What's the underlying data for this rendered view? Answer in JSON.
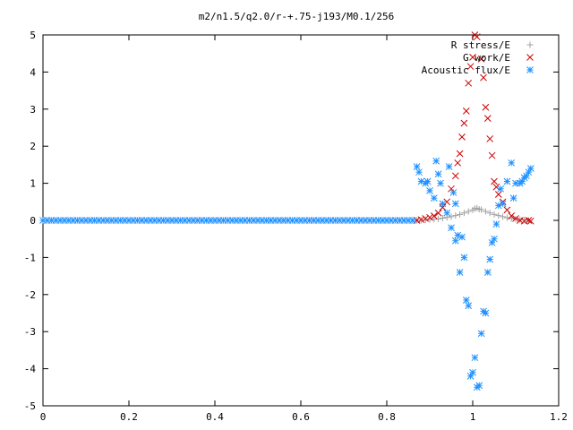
{
  "chart_data": {
    "type": "scatter",
    "title": "m2/n1.5/q2.0/r-+.75-j193/M0.1/256",
    "xlabel": "",
    "ylabel": "",
    "xlim": [
      0,
      1.2
    ],
    "ylim": [
      -5,
      5
    ],
    "xticks": [
      "0",
      "0.2",
      "0.4",
      "0.6",
      "0.8",
      "1",
      "1.2"
    ],
    "yticks": [
      "-5",
      "-4",
      "-3",
      "-2",
      "-1",
      "0",
      "1",
      "2",
      "3",
      "4",
      "5"
    ],
    "grid": false,
    "legend_position": "top-right",
    "series": [
      {
        "name": "R stress/E",
        "marker": "plus",
        "color": "#a0a0a0",
        "points": [
          [
            0.87,
            0.0
          ],
          [
            0.88,
            0.0
          ],
          [
            0.89,
            0.01
          ],
          [
            0.9,
            0.02
          ],
          [
            0.91,
            0.03
          ],
          [
            0.92,
            0.04
          ],
          [
            0.93,
            0.06
          ],
          [
            0.94,
            0.08
          ],
          [
            0.95,
            0.1
          ],
          [
            0.96,
            0.13
          ],
          [
            0.97,
            0.16
          ],
          [
            0.98,
            0.2
          ],
          [
            0.99,
            0.24
          ],
          [
            1.0,
            0.28
          ],
          [
            1.005,
            0.32
          ],
          [
            1.01,
            0.33
          ],
          [
            1.015,
            0.3
          ],
          [
            1.02,
            0.29
          ],
          [
            1.03,
            0.24
          ],
          [
            1.04,
            0.2
          ],
          [
            1.05,
            0.16
          ],
          [
            1.06,
            0.13
          ],
          [
            1.07,
            0.1
          ],
          [
            1.08,
            0.07
          ],
          [
            1.09,
            0.05
          ],
          [
            1.1,
            0.03
          ],
          [
            1.11,
            0.02
          ],
          [
            1.12,
            0.01
          ],
          [
            1.13,
            0.0
          ]
        ]
      },
      {
        "name": "G work/E",
        "marker": "cross",
        "color": "#cc0000",
        "points": [
          [
            0.87,
            0.0
          ],
          [
            0.88,
            0.02
          ],
          [
            0.89,
            0.05
          ],
          [
            0.9,
            0.08
          ],
          [
            0.91,
            0.12
          ],
          [
            0.92,
            0.2
          ],
          [
            0.93,
            0.35
          ],
          [
            0.94,
            0.5
          ],
          [
            0.95,
            0.85
          ],
          [
            0.96,
            1.2
          ],
          [
            0.965,
            1.55
          ],
          [
            0.97,
            1.8
          ],
          [
            0.975,
            2.25
          ],
          [
            0.98,
            2.62
          ],
          [
            0.985,
            2.95
          ],
          [
            0.99,
            3.7
          ],
          [
            0.995,
            4.15
          ],
          [
            1.0,
            4.4
          ],
          [
            1.005,
            5.0
          ],
          [
            1.01,
            4.95
          ],
          [
            1.02,
            4.35
          ],
          [
            1.025,
            3.85
          ],
          [
            1.03,
            3.05
          ],
          [
            1.035,
            2.75
          ],
          [
            1.04,
            2.2
          ],
          [
            1.045,
            1.75
          ],
          [
            1.05,
            1.05
          ],
          [
            1.055,
            0.9
          ],
          [
            1.06,
            0.7
          ],
          [
            1.07,
            0.5
          ],
          [
            1.08,
            0.28
          ],
          [
            1.09,
            0.12
          ],
          [
            1.1,
            0.05
          ],
          [
            1.11,
            0.0
          ],
          [
            1.12,
            -0.02
          ],
          [
            1.13,
            0.0
          ],
          [
            1.135,
            -0.02
          ]
        ]
      },
      {
        "name": "Acoustic flux/E",
        "marker": "star",
        "color": "#1e90ff",
        "points": [
          [
            0.87,
            1.45
          ],
          [
            0.875,
            1.3
          ],
          [
            0.88,
            1.05
          ],
          [
            0.89,
            1.0
          ],
          [
            0.895,
            1.05
          ],
          [
            0.9,
            0.8
          ],
          [
            0.91,
            0.6
          ],
          [
            0.915,
            1.6
          ],
          [
            0.92,
            1.25
          ],
          [
            0.925,
            1.0
          ],
          [
            0.93,
            0.45
          ],
          [
            0.94,
            0.2
          ],
          [
            0.945,
            1.45
          ],
          [
            0.95,
            -0.2
          ],
          [
            0.955,
            0.75
          ],
          [
            0.96,
            0.45
          ],
          [
            0.96,
            -0.55
          ],
          [
            0.965,
            -0.4
          ],
          [
            0.97,
            -1.4
          ],
          [
            0.975,
            -0.45
          ],
          [
            0.98,
            -1.0
          ],
          [
            0.985,
            -2.15
          ],
          [
            0.99,
            -2.3
          ],
          [
            0.995,
            -4.2
          ],
          [
            1.0,
            -4.1
          ],
          [
            1.005,
            -3.7
          ],
          [
            1.01,
            -4.5
          ],
          [
            1.015,
            -4.45
          ],
          [
            1.02,
            -3.05
          ],
          [
            1.025,
            -2.45
          ],
          [
            1.03,
            -2.5
          ],
          [
            1.035,
            -1.4
          ],
          [
            1.04,
            -1.05
          ],
          [
            1.045,
            -0.6
          ],
          [
            1.05,
            -0.5
          ],
          [
            1.055,
            -0.1
          ],
          [
            1.06,
            0.4
          ],
          [
            1.065,
            0.85
          ],
          [
            1.07,
            0.45
          ],
          [
            1.08,
            1.05
          ],
          [
            1.09,
            1.55
          ],
          [
            1.095,
            0.6
          ],
          [
            1.1,
            1.0
          ],
          [
            1.11,
            1.0
          ],
          [
            1.115,
            1.05
          ],
          [
            1.12,
            1.15
          ],
          [
            1.125,
            1.2
          ],
          [
            1.13,
            1.3
          ],
          [
            1.135,
            1.4
          ],
          [
            0.0,
            0.0
          ],
          [
            0.01,
            0.0
          ],
          [
            0.02,
            0.0
          ],
          [
            0.03,
            0.0
          ],
          [
            0.04,
            0.0
          ],
          [
            0.05,
            0.0
          ],
          [
            0.06,
            0.0
          ],
          [
            0.07,
            0.0
          ],
          [
            0.08,
            0.0
          ],
          [
            0.09,
            0.0
          ],
          [
            0.1,
            0.0
          ],
          [
            0.11,
            0.0
          ],
          [
            0.12,
            0.0
          ],
          [
            0.13,
            0.0
          ],
          [
            0.14,
            0.0
          ],
          [
            0.15,
            0.0
          ],
          [
            0.16,
            0.0
          ],
          [
            0.17,
            0.0
          ],
          [
            0.18,
            0.0
          ],
          [
            0.19,
            0.0
          ],
          [
            0.2,
            0.0
          ],
          [
            0.21,
            0.0
          ],
          [
            0.22,
            0.0
          ],
          [
            0.23,
            0.0
          ],
          [
            0.24,
            0.0
          ],
          [
            0.25,
            0.0
          ],
          [
            0.26,
            0.0
          ],
          [
            0.27,
            0.0
          ],
          [
            0.28,
            0.0
          ],
          [
            0.29,
            0.0
          ],
          [
            0.3,
            0.0
          ],
          [
            0.31,
            0.0
          ],
          [
            0.32,
            0.0
          ],
          [
            0.33,
            0.0
          ],
          [
            0.34,
            0.0
          ],
          [
            0.35,
            0.0
          ],
          [
            0.36,
            0.0
          ],
          [
            0.37,
            0.0
          ],
          [
            0.38,
            0.0
          ],
          [
            0.39,
            0.0
          ],
          [
            0.4,
            0.0
          ],
          [
            0.41,
            0.0
          ],
          [
            0.42,
            0.0
          ],
          [
            0.43,
            0.0
          ],
          [
            0.44,
            0.0
          ],
          [
            0.45,
            0.0
          ],
          [
            0.46,
            0.0
          ],
          [
            0.47,
            0.0
          ],
          [
            0.48,
            0.0
          ],
          [
            0.49,
            0.0
          ],
          [
            0.5,
            0.0
          ],
          [
            0.51,
            0.0
          ],
          [
            0.52,
            0.0
          ],
          [
            0.53,
            0.0
          ],
          [
            0.54,
            0.0
          ],
          [
            0.55,
            0.0
          ],
          [
            0.56,
            0.0
          ],
          [
            0.57,
            0.0
          ],
          [
            0.58,
            0.0
          ],
          [
            0.59,
            0.0
          ],
          [
            0.6,
            0.0
          ],
          [
            0.61,
            0.0
          ],
          [
            0.62,
            0.0
          ],
          [
            0.63,
            0.0
          ],
          [
            0.64,
            0.0
          ],
          [
            0.65,
            0.0
          ],
          [
            0.66,
            0.0
          ],
          [
            0.67,
            0.0
          ],
          [
            0.68,
            0.0
          ],
          [
            0.69,
            0.0
          ],
          [
            0.7,
            0.0
          ],
          [
            0.71,
            0.0
          ],
          [
            0.72,
            0.0
          ],
          [
            0.73,
            0.0
          ],
          [
            0.74,
            0.0
          ],
          [
            0.75,
            0.0
          ],
          [
            0.76,
            0.0
          ],
          [
            0.77,
            0.0
          ],
          [
            0.78,
            0.0
          ],
          [
            0.79,
            0.0
          ],
          [
            0.8,
            0.0
          ],
          [
            0.81,
            0.0
          ],
          [
            0.82,
            0.0
          ],
          [
            0.83,
            0.0
          ],
          [
            0.84,
            0.0
          ],
          [
            0.85,
            0.0
          ],
          [
            0.86,
            0.0
          ]
        ]
      }
    ]
  }
}
